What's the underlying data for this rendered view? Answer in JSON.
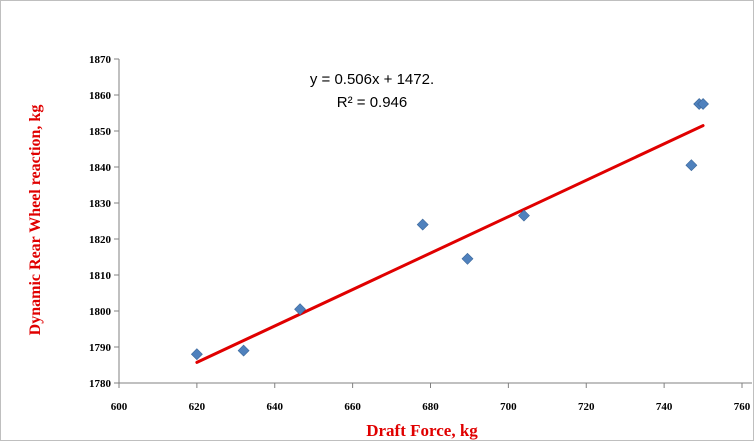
{
  "chart_data": {
    "type": "scatter",
    "title": "",
    "xlabel": "Draft Force, kg",
    "ylabel": "Dynamic Rear Wheel reaction, kg",
    "xlim": [
      600,
      760
    ],
    "ylim": [
      1780,
      1870
    ],
    "xticks": [
      "600",
      "620",
      "640",
      "660",
      "680",
      "700",
      "720",
      "740",
      "760"
    ],
    "yticks": [
      "1780",
      "1790",
      "1800",
      "1810",
      "1820",
      "1830",
      "1840",
      "1850",
      "1860",
      "1870"
    ],
    "grid": false,
    "legend": "none",
    "series": [
      {
        "x": [
          620,
          632,
          646.5,
          678,
          689.5,
          704,
          747,
          749,
          750
        ],
        "y": [
          1788,
          1789,
          1800.5,
          1824,
          1814.5,
          1826.5,
          1840.5,
          1857.5,
          1857.5
        ],
        "color": "#4f81bd",
        "marker": "diamond"
      }
    ],
    "trendline": {
      "type": "linear",
      "x_range": [
        620,
        750
      ],
      "slope": 0.506,
      "intercept": 1472,
      "color": "#e00000"
    },
    "annotations": {
      "equation": "y = 0.506x + 1472.",
      "r_squared": "R² = 0.946"
    }
  }
}
